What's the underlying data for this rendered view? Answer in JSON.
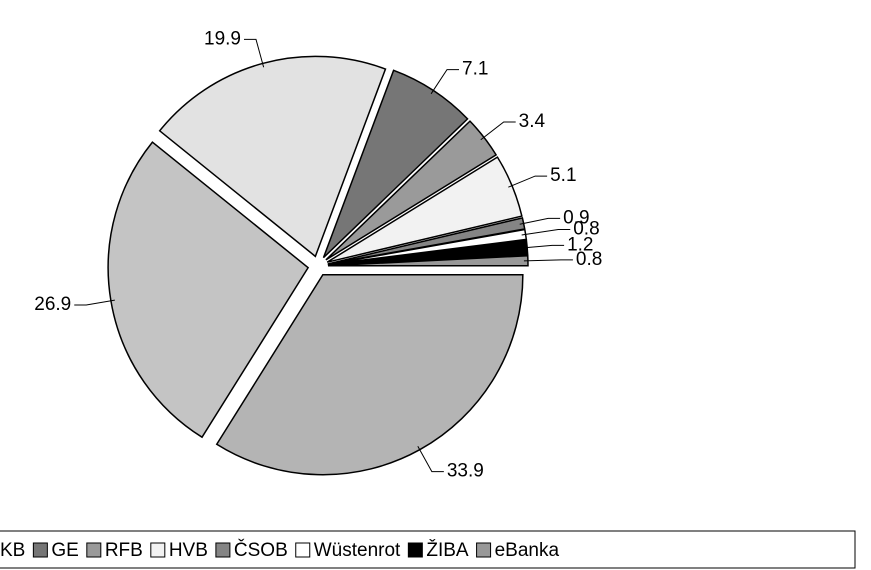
{
  "chart_data": {
    "type": "pie",
    "categories": [
      null,
      null,
      "KB",
      "GE",
      "RFB",
      "HVB",
      "ČSOB",
      "Wüstenrot",
      "ŽIBA",
      "eBanka"
    ],
    "values": [
      33.9,
      26.9,
      19.9,
      7.1,
      3.4,
      5.1,
      0.9,
      0.8,
      1.2,
      0.8
    ],
    "colors": [
      "#b4b4b4",
      "#c4c4c4",
      "#e2e2e2",
      "#767676",
      "#9a9a9a",
      "#f2f2f2",
      "#858585",
      "#ffffff",
      "#000000",
      "#989898"
    ],
    "legend": "bottom"
  }
}
